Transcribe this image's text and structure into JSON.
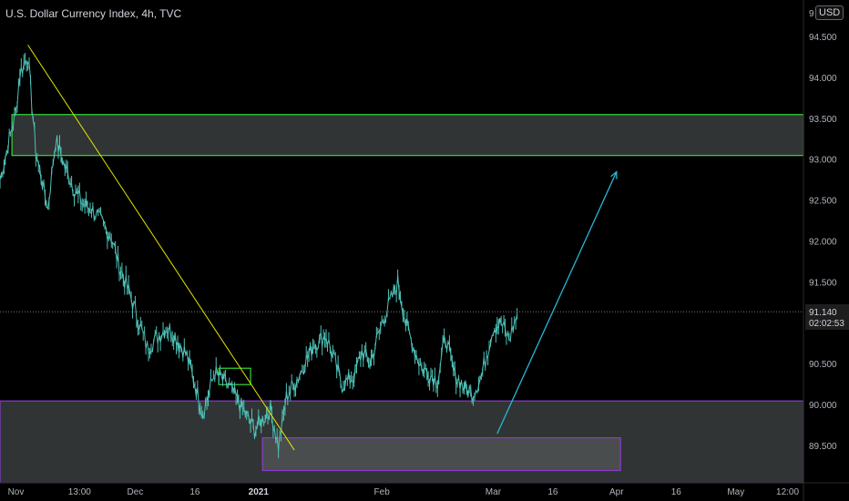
{
  "header": {
    "title": "U.S. Dollar Currency Index, 4h, TVC",
    "currency": "USD"
  },
  "colors": {
    "background": "#000000",
    "candles": "#4fc3b8",
    "trendline": "#e6e600",
    "forecast_arrow": "#29b6d6",
    "resistance_zone": "#33dd33",
    "support_zone": "#8a3bcc",
    "zone_fill": "#3a3d3d"
  },
  "chart_data": {
    "type": "line",
    "title": "U.S. Dollar Currency Index, 4h, TVC",
    "xlabel": "",
    "ylabel": "",
    "ylim": [
      89.05,
      94.95
    ],
    "xlim": [
      "2020-10-28",
      "2021-05-18"
    ],
    "x_ticks": [
      {
        "label": "Nov",
        "date": "2020-11-01",
        "bold": false
      },
      {
        "label": "13:00",
        "date": "2020-11-17",
        "bold": false
      },
      {
        "label": "Dec",
        "date": "2020-12-01",
        "bold": false
      },
      {
        "label": "16",
        "date": "2020-12-16",
        "bold": false
      },
      {
        "label": "2021",
        "date": "2021-01-01",
        "bold": true
      },
      {
        "label": "Feb",
        "date": "2021-02-01",
        "bold": false
      },
      {
        "label": "Mar",
        "date": "2021-03-01",
        "bold": false
      },
      {
        "label": "16",
        "date": "2021-03-16",
        "bold": false
      },
      {
        "label": "Apr",
        "date": "2021-04-01",
        "bold": false
      },
      {
        "label": "16",
        "date": "2021-04-16",
        "bold": false
      },
      {
        "label": "May",
        "date": "2021-05-01",
        "bold": false
      },
      {
        "label": "12:00",
        "date": "2021-05-14",
        "bold": false
      }
    ],
    "y_ticks": [
      "89.500",
      "90.000",
      "90.500",
      "91.000",
      "91.500",
      "92.000",
      "92.500",
      "93.000",
      "93.500",
      "94.000",
      "94.500"
    ],
    "y_axis_top_cut_label": "9",
    "series": [
      {
        "values": [
          [
            "2020-10-28",
            92.75
          ],
          [
            "2020-11-01",
            93.6
          ],
          [
            "2020-11-02",
            94.05
          ],
          [
            "2020-11-04",
            94.28
          ],
          [
            "2020-11-06",
            93.1
          ],
          [
            "2020-11-09",
            92.4
          ],
          [
            "2020-11-11",
            93.25
          ],
          [
            "2020-11-13",
            92.95
          ],
          [
            "2020-11-16",
            92.6
          ],
          [
            "2020-11-18",
            92.45
          ],
          [
            "2020-11-20",
            92.4
          ],
          [
            "2020-11-23",
            92.2
          ],
          [
            "2020-11-25",
            92.05
          ],
          [
            "2020-11-27",
            91.7
          ],
          [
            "2020-11-30",
            91.3
          ],
          [
            "2020-12-02",
            91.0
          ],
          [
            "2020-12-04",
            90.7
          ],
          [
            "2020-12-07",
            90.85
          ],
          [
            "2020-12-09",
            90.95
          ],
          [
            "2020-12-11",
            90.85
          ],
          [
            "2020-12-14",
            90.6
          ],
          [
            "2020-12-16",
            90.25
          ],
          [
            "2020-12-18",
            89.9
          ],
          [
            "2020-12-21",
            90.4
          ],
          [
            "2020-12-23",
            90.3
          ],
          [
            "2020-12-25",
            90.2
          ],
          [
            "2020-12-28",
            89.95
          ],
          [
            "2020-12-31",
            89.7
          ],
          [
            "2021-01-04",
            89.95
          ],
          [
            "2021-01-06",
            89.5
          ],
          [
            "2021-01-08",
            90.1
          ],
          [
            "2021-01-11",
            90.35
          ],
          [
            "2021-01-13",
            90.55
          ],
          [
            "2021-01-15",
            90.75
          ],
          [
            "2021-01-18",
            90.85
          ],
          [
            "2021-01-20",
            90.55
          ],
          [
            "2021-01-22",
            90.25
          ],
          [
            "2021-01-25",
            90.35
          ],
          [
            "2021-01-27",
            90.65
          ],
          [
            "2021-01-29",
            90.5
          ],
          [
            "2021-02-01",
            91.0
          ],
          [
            "2021-02-03",
            91.25
          ],
          [
            "2021-02-05",
            91.5
          ],
          [
            "2021-02-07",
            91.0
          ],
          [
            "2021-02-09",
            90.7
          ],
          [
            "2021-02-11",
            90.45
          ],
          [
            "2021-02-15",
            90.3
          ],
          [
            "2021-02-17",
            90.85
          ],
          [
            "2021-02-19",
            90.4
          ],
          [
            "2021-02-22",
            90.2
          ],
          [
            "2021-02-24",
            90.15
          ],
          [
            "2021-02-26",
            90.35
          ],
          [
            "2021-03-01",
            90.95
          ],
          [
            "2021-03-03",
            91.0
          ],
          [
            "2021-03-05",
            90.8
          ],
          [
            "2021-03-07",
            91.1
          ]
        ]
      }
    ],
    "annotations": {
      "resistance_zone": {
        "from": "2020-10-31",
        "to": "2021-05-18",
        "low": 93.05,
        "high": 93.55
      },
      "support_zone": {
        "from": "2020-10-28",
        "to": "2021-05-18",
        "low": 89.05,
        "high": 90.05
      },
      "lower_box": {
        "from": "2021-01-02",
        "to": "2021-04-02",
        "low": 89.2,
        "high": 89.6
      },
      "small_box": {
        "from": "2020-12-22",
        "to": "2020-12-30",
        "low": 90.25,
        "high": 90.45
      },
      "trendline": {
        "start": [
          "2020-11-04",
          94.4
        ],
        "end": [
          "2021-01-10",
          89.45
        ]
      },
      "forecast_arrow": {
        "start": [
          "2021-03-02",
          89.65
        ],
        "end": [
          "2021-04-01",
          92.85
        ]
      }
    }
  },
  "price_axis": {
    "last_price": "91.140",
    "countdown": "02:02:53",
    "last_price_value": 91.14
  }
}
